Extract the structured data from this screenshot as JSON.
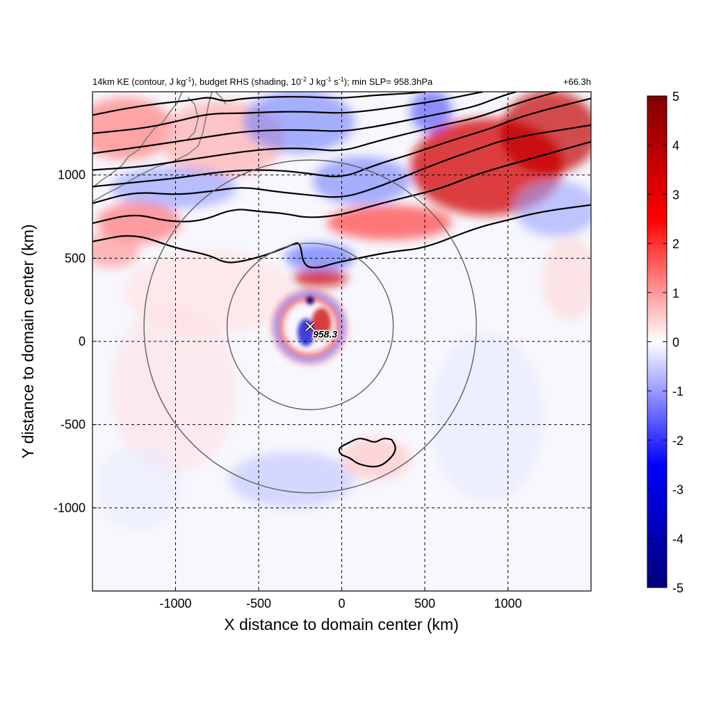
{
  "chart_data": {
    "type": "heatmap",
    "title": {
      "left": "14km KE (contour, J kg-1), budget RHS (shading, 10-2 J kg-1 s-1); min SLP= 958.3hPa",
      "left_parts": {
        "p1": "14km KE (contour, J kg",
        "sup1": "-1",
        "p2": "), budget RHS (shading, 10",
        "sup2": "-2",
        "p3": " J kg",
        "sup3": "-1",
        "p4": " s",
        "sup4": "-1",
        "p5": "); min SLP= 958.3hPa"
      },
      "right": "+66.3h"
    },
    "xlabel": "X distance to domain center (km)",
    "ylabel": "Y distance to domain center (km)",
    "xlim": [
      -1500,
      1500
    ],
    "ylim": [
      -1500,
      1500
    ],
    "xticks": [
      -1000,
      -500,
      0,
      500,
      1000
    ],
    "yticks": [
      -1000,
      -500,
      0,
      500,
      1000
    ],
    "grid": true,
    "colorbar": {
      "min": -5,
      "max": 5,
      "ticks": [
        -5,
        -4,
        -3,
        -2,
        -1,
        0,
        1,
        2,
        3,
        4,
        5
      ],
      "colors": [
        "#00007a",
        "#0000ff",
        "#ffffff",
        "#ff0000",
        "#800000"
      ]
    },
    "storm_center": {
      "x": -190,
      "y": 90,
      "label": "958.3"
    },
    "range_rings": [
      {
        "cx": -190,
        "cy": 90,
        "r": 500
      },
      {
        "cx": -190,
        "cy": 90,
        "r": 1000
      }
    ],
    "ke_contours": [
      [
        [
          -1500,
          600
        ],
        [
          -1250,
          650
        ],
        [
          -1000,
          560
        ],
        [
          -800,
          520
        ],
        [
          -700,
          470
        ],
        [
          -600,
          480
        ],
        [
          -450,
          520
        ],
        [
          -300,
          580
        ],
        [
          -250,
          600
        ],
        [
          -230,
          450
        ],
        [
          -140,
          440
        ],
        [
          -50,
          470
        ],
        [
          100,
          500
        ],
        [
          300,
          540
        ],
        [
          500,
          560
        ],
        [
          800,
          680
        ],
        [
          1000,
          730
        ],
        [
          1200,
          780
        ],
        [
          1500,
          820
        ]
      ],
      [
        [
          -1500,
          710
        ],
        [
          -1250,
          770
        ],
        [
          -1050,
          720
        ],
        [
          -850,
          720
        ],
        [
          -650,
          800
        ],
        [
          -500,
          780
        ],
        [
          -350,
          770
        ],
        [
          -200,
          740
        ],
        [
          0,
          760
        ],
        [
          200,
          820
        ],
        [
          400,
          870
        ],
        [
          600,
          920
        ],
        [
          800,
          1000
        ],
        [
          1000,
          1060
        ],
        [
          1500,
          1200
        ]
      ],
      [
        [
          -1500,
          830
        ],
        [
          -1250,
          900
        ],
        [
          -1000,
          880
        ],
        [
          -800,
          900
        ],
        [
          -600,
          930
        ],
        [
          -400,
          900
        ],
        [
          -200,
          880
        ],
        [
          0,
          860
        ],
        [
          200,
          920
        ],
        [
          400,
          1000
        ],
        [
          600,
          1080
        ],
        [
          800,
          1150
        ],
        [
          1000,
          1220
        ],
        [
          1500,
          1300
        ]
      ],
      [
        [
          -1500,
          930
        ],
        [
          -1200,
          960
        ],
        [
          -1000,
          980
        ],
        [
          -800,
          1010
        ],
        [
          -600,
          1030
        ],
        [
          -400,
          1030
        ],
        [
          -200,
          1010
        ],
        [
          0,
          980
        ],
        [
          200,
          1060
        ],
        [
          400,
          1120
        ],
        [
          550,
          1170
        ],
        [
          700,
          1220
        ],
        [
          900,
          1280
        ],
        [
          1100,
          1360
        ],
        [
          1500,
          1460
        ]
      ],
      [
        [
          -1500,
          1030
        ],
        [
          -1200,
          1050
        ],
        [
          -1000,
          1080
        ],
        [
          -800,
          1110
        ],
        [
          -600,
          1140
        ],
        [
          -400,
          1160
        ],
        [
          -200,
          1160
        ],
        [
          0,
          1140
        ],
        [
          200,
          1200
        ],
        [
          400,
          1250
        ],
        [
          600,
          1300
        ],
        [
          800,
          1340
        ],
        [
          1000,
          1410
        ],
        [
          1150,
          1460
        ],
        [
          1300,
          1500
        ]
      ],
      [
        [
          -1500,
          1130
        ],
        [
          -1200,
          1170
        ],
        [
          -1000,
          1200
        ],
        [
          -800,
          1230
        ],
        [
          -600,
          1260
        ],
        [
          -400,
          1270
        ],
        [
          -200,
          1270
        ],
        [
          0,
          1260
        ],
        [
          200,
          1290
        ],
        [
          400,
          1330
        ],
        [
          600,
          1370
        ],
        [
          800,
          1410
        ],
        [
          950,
          1470
        ],
        [
          1050,
          1500
        ]
      ],
      [
        [
          -1500,
          1250
        ],
        [
          -1200,
          1280
        ],
        [
          -1000,
          1320
        ],
        [
          -800,
          1370
        ],
        [
          -600,
          1370
        ],
        [
          -400,
          1380
        ],
        [
          -200,
          1380
        ],
        [
          0,
          1370
        ],
        [
          200,
          1390
        ],
        [
          400,
          1420
        ],
        [
          600,
          1450
        ],
        [
          800,
          1490
        ],
        [
          850,
          1500
        ]
      ],
      [
        [
          -1500,
          1360
        ],
        [
          -1300,
          1400
        ],
        [
          -1100,
          1430
        ],
        [
          -900,
          1450
        ],
        [
          -800,
          1470
        ],
        [
          -700,
          1440
        ],
        [
          -600,
          1460
        ],
        [
          -400,
          1470
        ],
        [
          -200,
          1470
        ],
        [
          0,
          1460
        ],
        [
          200,
          1480
        ],
        [
          400,
          1490
        ],
        [
          500,
          1500
        ]
      ],
      [
        [
          300,
          -590
        ],
        [
          330,
          -640
        ],
        [
          300,
          -700
        ],
        [
          220,
          -760
        ],
        [
          100,
          -740
        ],
        [
          50,
          -700
        ],
        [
          -10,
          -680
        ],
        [
          -20,
          -640
        ],
        [
          40,
          -610
        ],
        [
          100,
          -580
        ],
        [
          150,
          -590
        ],
        [
          200,
          -610
        ],
        [
          250,
          -580
        ],
        [
          300,
          -590
        ]
      ]
    ]
  }
}
